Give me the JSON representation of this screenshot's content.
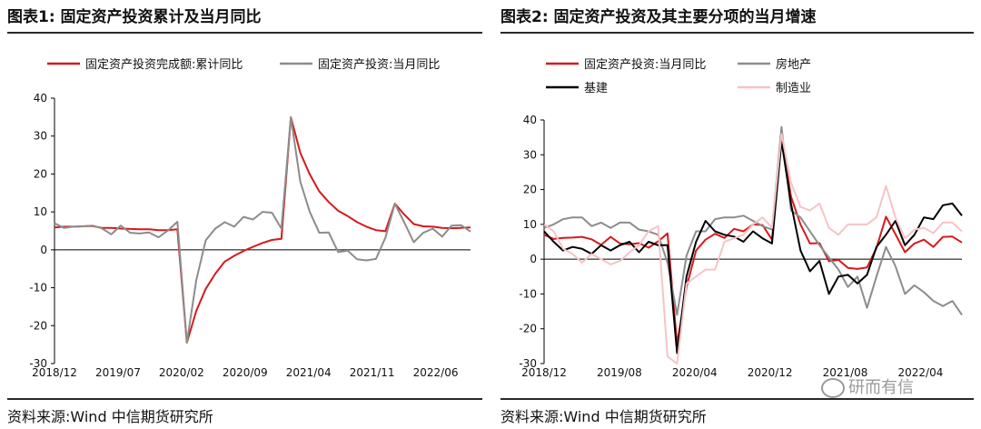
{
  "fig1": {
    "title": "图表1:  固定资产投资累计及当月同比",
    "source": "资料来源:Wind 中信期货研究所"
  },
  "fig2": {
    "title": "图表2:  固定资产投资及其主要分项的当月增速",
    "source": "资料来源:Wind 中信期货研究所"
  },
  "watermark": {
    "text": "研而有信"
  },
  "chart_data": [
    {
      "type": "line",
      "title": "图表1:  固定资产投资累计及当月同比",
      "ylim": [
        -30,
        40
      ],
      "yticks": [
        -30,
        -20,
        -10,
        0,
        10,
        20,
        30,
        40
      ],
      "xtick_labels": [
        "2018/12",
        "2019/07",
        "2020/02",
        "2020/09",
        "2021/04",
        "2021/11",
        "2022/06"
      ],
      "x_count": 45,
      "series": [
        {
          "name": "固定资产投资完成额:累计同比",
          "color": "#d7191c",
          "values": [
            5.9,
            6.1,
            6.1,
            6.2,
            6.3,
            5.8,
            5.8,
            5.6,
            5.5,
            5.4,
            5.4,
            5.2,
            5.2,
            5.4,
            -24.5,
            -16.1,
            -10.3,
            -6.3,
            -3.1,
            -1.6,
            -0.3,
            0.8,
            1.8,
            2.6,
            2.9,
            35.0,
            25.6,
            19.9,
            15.4,
            12.6,
            10.3,
            8.9,
            7.3,
            6.1,
            5.2,
            4.9,
            12.2,
            9.3,
            6.8,
            6.2,
            6.1,
            5.8,
            5.7,
            5.8,
            5.9
          ]
        },
        {
          "name": "固定资产投资:当月同比",
          "color": "#8c8c8c",
          "values": [
            7.0,
            5.8,
            6.1,
            6.2,
            6.4,
            5.7,
            4.1,
            6.4,
            4.5,
            4.3,
            4.6,
            3.3,
            5.1,
            7.4,
            -24.5,
            -8.0,
            2.5,
            5.6,
            7.3,
            6.1,
            8.7,
            8.0,
            10.0,
            9.8,
            5.6,
            35.0,
            18.0,
            10.0,
            4.5,
            4.6,
            -0.6,
            -0.2,
            -2.5,
            -2.8,
            -2.4,
            3.2,
            12.2,
            7.2,
            2.0,
            4.5,
            5.6,
            3.5,
            6.4,
            6.5,
            4.8
          ]
        }
      ]
    },
    {
      "type": "line",
      "title": "图表2:  固定资产投资及其主要分项的当月增速",
      "ylim": [
        -30,
        40
      ],
      "yticks": [
        -30,
        -20,
        -10,
        0,
        10,
        20,
        30,
        40
      ],
      "xtick_labels": [
        "2018/12",
        "2019/08",
        "2020/04",
        "2020/12",
        "2021/08",
        "2022/04"
      ],
      "x_count": 45,
      "series": [
        {
          "name": "固定资产投资:当月同比",
          "color": "#d7191c",
          "values": [
            7.0,
            5.8,
            6.1,
            6.2,
            6.4,
            5.7,
            4.1,
            6.4,
            4.5,
            4.3,
            4.6,
            3.3,
            5.1,
            7.4,
            -24.5,
            -8.0,
            2.5,
            5.6,
            7.3,
            6.1,
            8.7,
            8.0,
            10.0,
            9.8,
            5.6,
            35.0,
            18.0,
            10.0,
            4.5,
            4.6,
            -0.6,
            -0.2,
            -2.5,
            -2.8,
            -2.4,
            3.2,
            12.2,
            7.2,
            2.0,
            4.5,
            5.6,
            3.5,
            6.4,
            6.5,
            4.8
          ]
        },
        {
          "name": "房地产",
          "color": "#8c8c8c",
          "values": [
            9.0,
            10.0,
            11.5,
            12.0,
            12.0,
            9.5,
            10.5,
            9.0,
            10.5,
            10.5,
            8.5,
            8.0,
            7.0,
            -1.0,
            -16.0,
            1.0,
            8.0,
            8.0,
            11.5,
            12.0,
            12.0,
            12.5,
            11.0,
            9.5,
            8.5,
            38.0,
            14.0,
            12.0,
            8.0,
            4.0,
            0.5,
            -3.0,
            -8.0,
            -5.0,
            -14.0,
            -5.0,
            3.5,
            -2.0,
            -10.0,
            -7.5,
            -9.5,
            -12.0,
            -13.5,
            -12.0,
            -16.0
          ]
        },
        {
          "name": "基建",
          "color": "#000000",
          "values": [
            8.0,
            5.0,
            2.5,
            3.5,
            3.0,
            1.5,
            4.0,
            2.5,
            4.0,
            5.0,
            2.0,
            5.0,
            4.0,
            4.0,
            -27.0,
            -5.0,
            5.0,
            11.0,
            8.0,
            7.0,
            6.5,
            5.0,
            8.0,
            6.0,
            4.5,
            34.0,
            16.0,
            2.5,
            -3.5,
            -0.5,
            -10.0,
            -5.0,
            -4.5,
            -7.0,
            -4.5,
            3.5,
            7.0,
            11.0,
            4.0,
            7.0,
            12.0,
            11.5,
            15.5,
            16.0,
            12.5
          ]
        },
        {
          "name": "制造业",
          "color": "#f7c3c6",
          "values": [
            10.0,
            8.0,
            3.0,
            1.5,
            -1.0,
            1.5,
            0.0,
            -1.5,
            -0.5,
            2.0,
            4.0,
            8.0,
            9.5,
            -28.0,
            -30.0,
            -7.0,
            -5.0,
            -3.0,
            -3.0,
            5.0,
            6.0,
            7.0,
            10.0,
            12.0,
            9.0,
            36.0,
            22.0,
            15.0,
            14.0,
            16.0,
            9.0,
            7.0,
            10.0,
            10.0,
            10.0,
            12.0,
            21.0,
            12.0,
            6.0,
            8.5,
            9.0,
            7.5,
            10.5,
            10.5,
            8.0
          ]
        }
      ]
    }
  ]
}
